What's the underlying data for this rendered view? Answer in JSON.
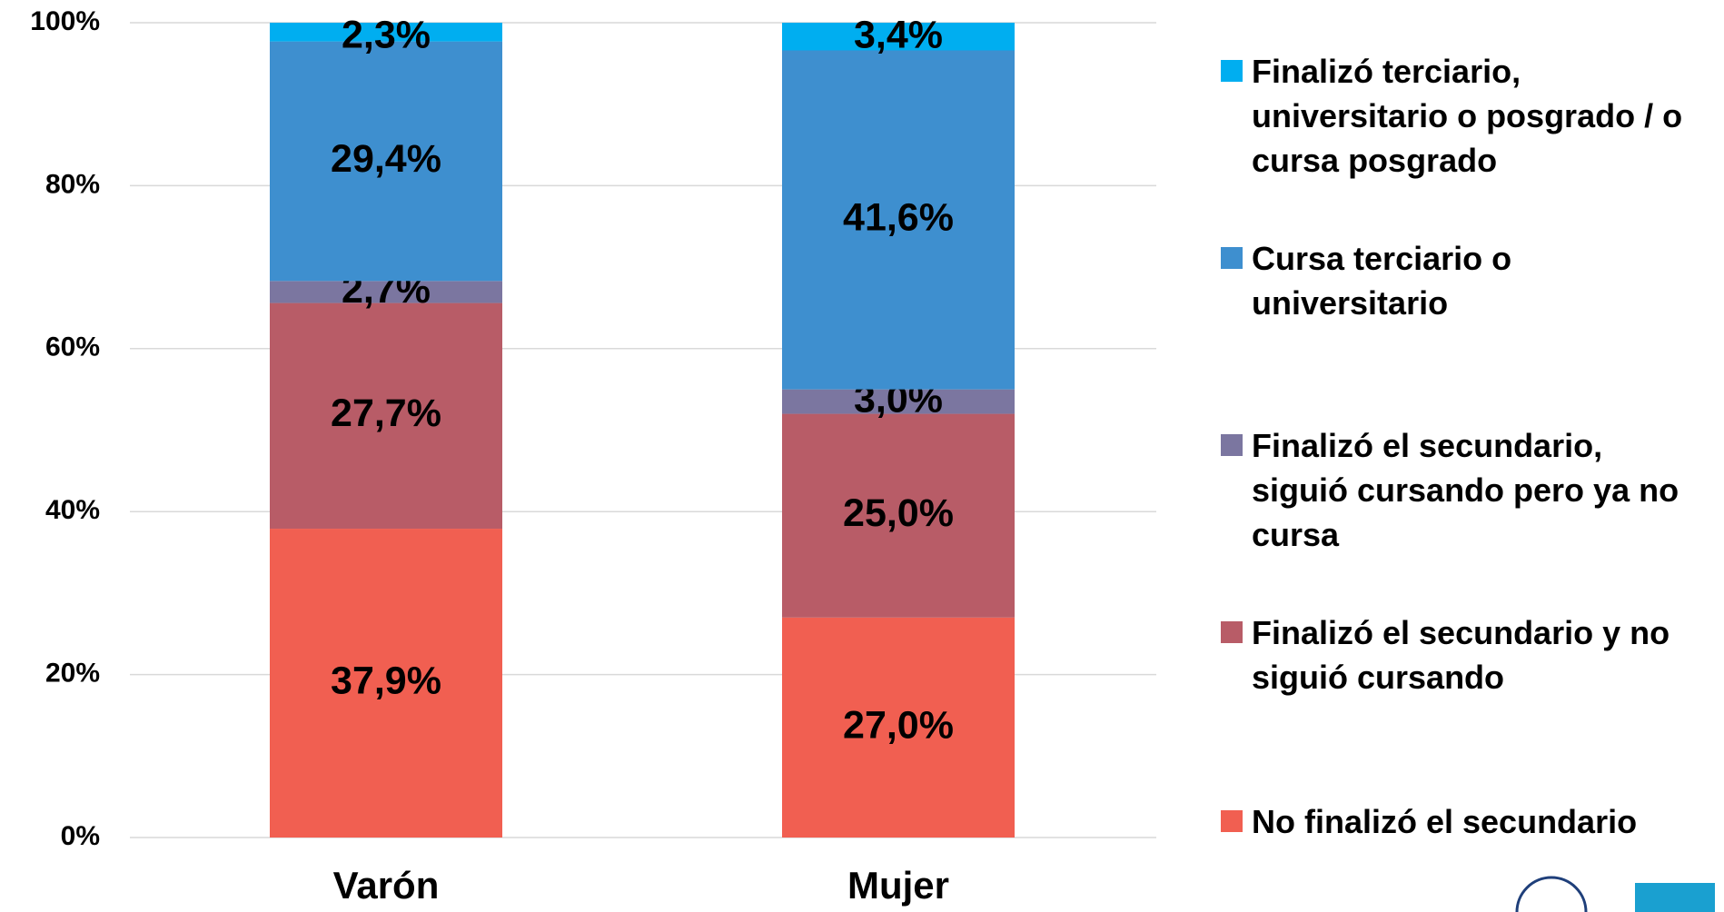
{
  "chart_data": {
    "type": "stacked_bar",
    "categories": [
      "Varón",
      "Mujer"
    ],
    "series": [
      {
        "name": "No finalizó el secundario",
        "color": "#f15f51",
        "values": [
          37.9,
          27.0
        ],
        "value_labels": [
          "37,9%",
          "27,0%"
        ]
      },
      {
        "name": "Finalizó el secundario y no siguió cursando",
        "color": "#b85c67",
        "values": [
          27.7,
          25.0
        ],
        "value_labels": [
          "27,7%",
          "25,0%"
        ]
      },
      {
        "name": "Finalizó el secundario, siguió cursando pero ya no cursa",
        "color": "#7b76a0",
        "values": [
          2.7,
          3.0
        ],
        "value_labels": [
          "2,7%",
          "3,0%"
        ]
      },
      {
        "name": "Cursa terciario o universitario",
        "color": "#3e8fcf",
        "values": [
          29.4,
          41.6
        ],
        "value_labels": [
          "29,4%",
          "41,6%"
        ]
      },
      {
        "name": "Finalizó terciario, universitario o posgrado / o cursa posgrado",
        "color": "#00aef0",
        "values": [
          2.3,
          3.4
        ],
        "value_labels": [
          "2,3%",
          "3,4%"
        ]
      }
    ],
    "ylim": [
      0,
      100
    ],
    "yticks": [
      {
        "value": 0,
        "label": "0%"
      },
      {
        "value": 20,
        "label": "20%"
      },
      {
        "value": 40,
        "label": "40%"
      },
      {
        "value": 60,
        "label": "60%"
      },
      {
        "value": 80,
        "label": "80%"
      },
      {
        "value": 100,
        "label": "100%"
      }
    ],
    "grid": true,
    "legend": "right"
  }
}
